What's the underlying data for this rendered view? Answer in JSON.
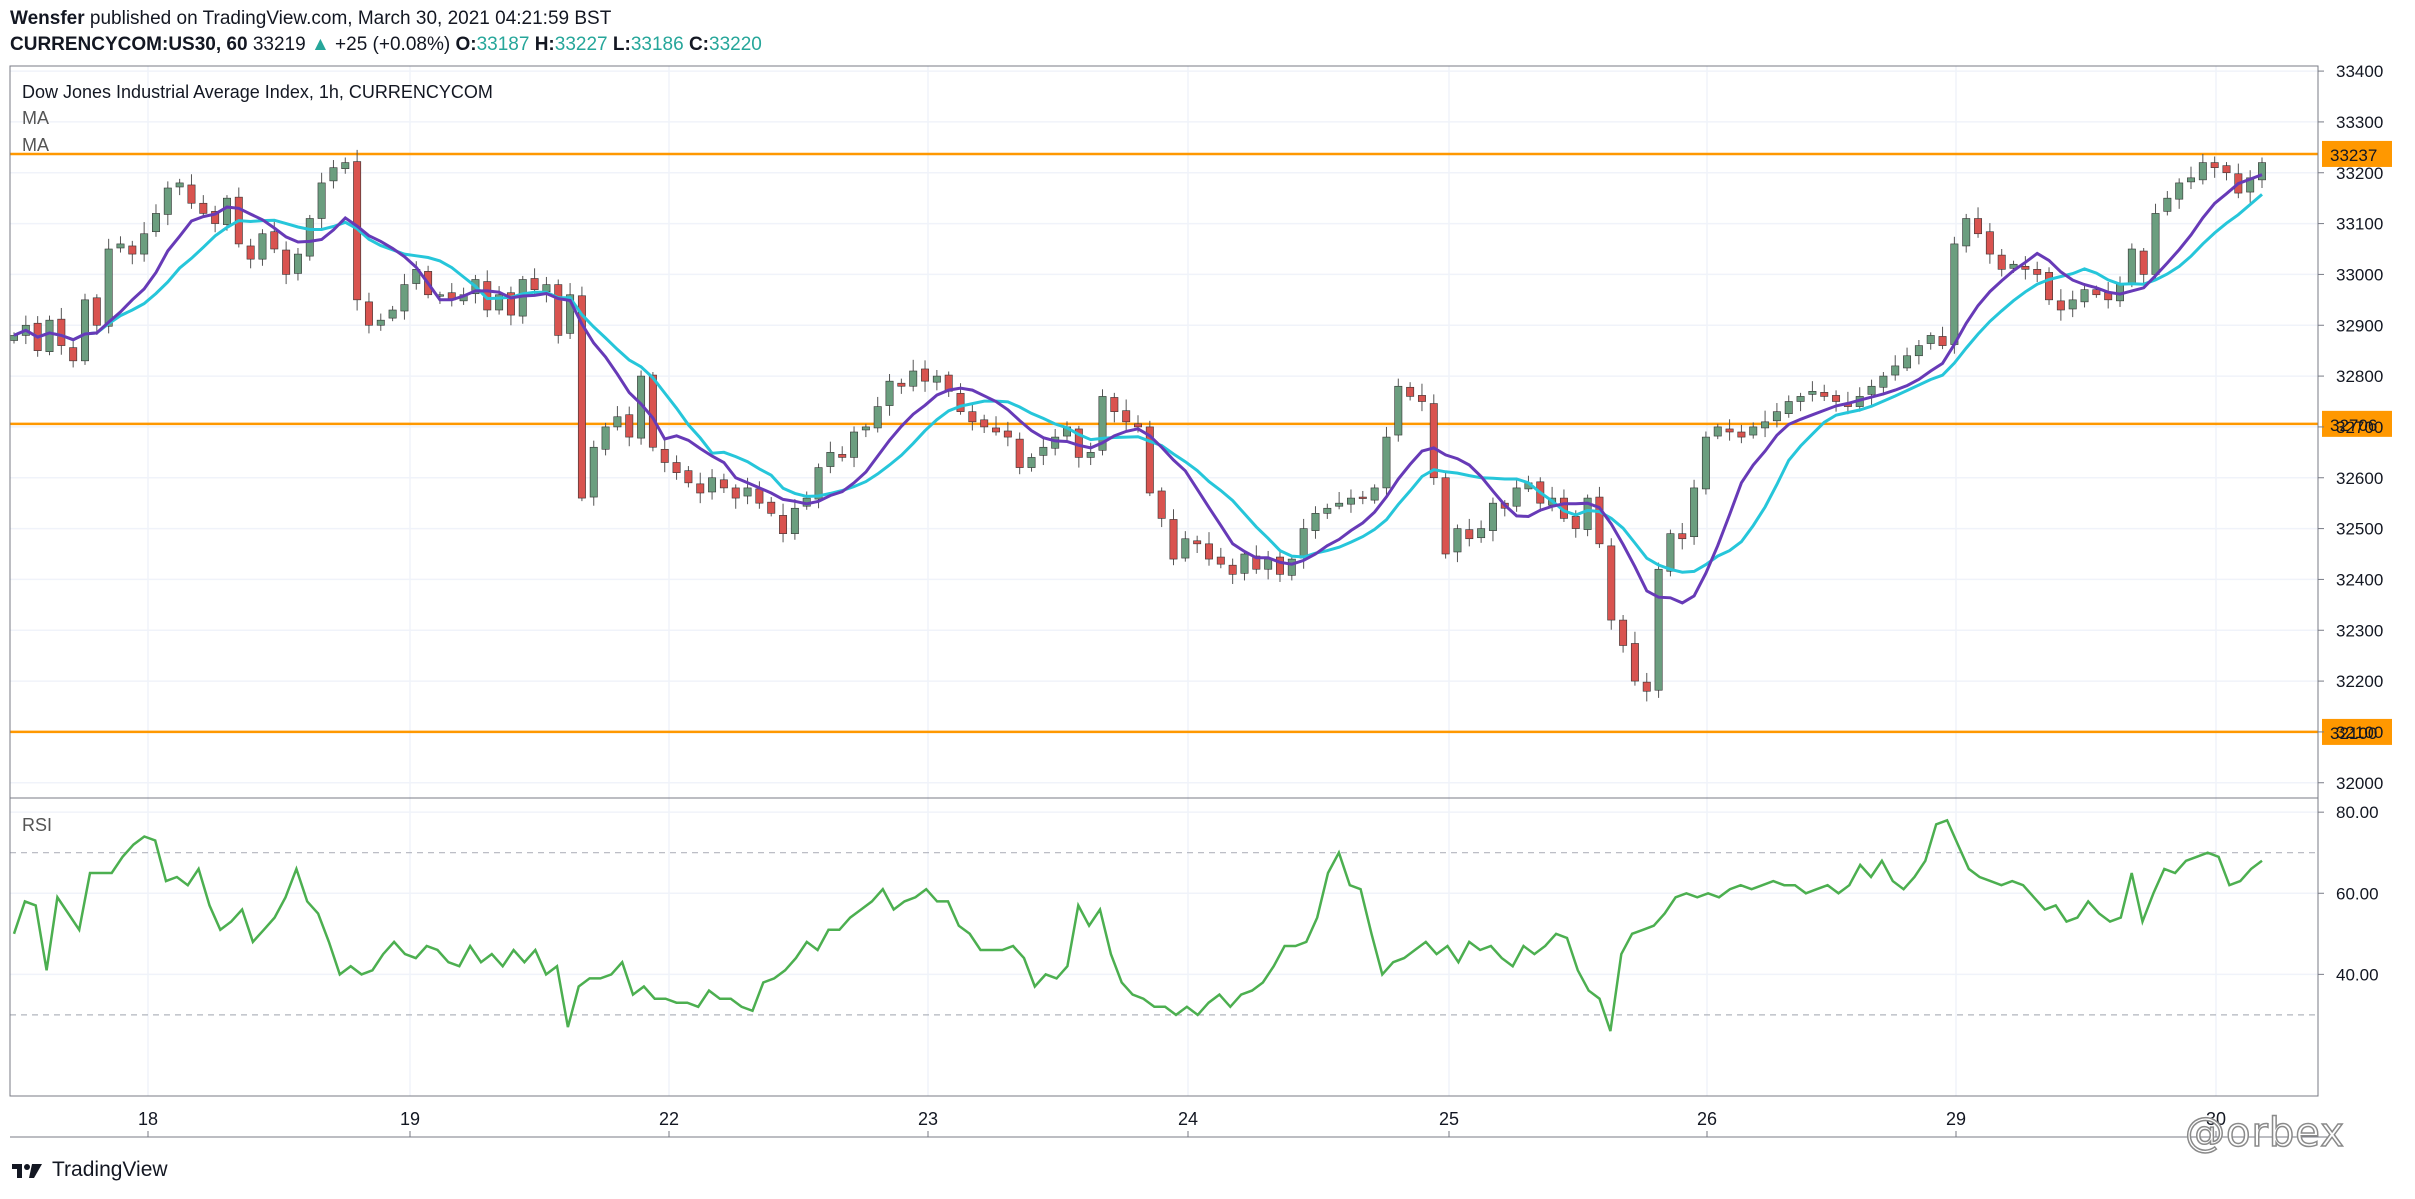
{
  "header": {
    "author": "Wensfer",
    "published_text": "published on TradingView.com, March 30, 2021 04:21:59 BST",
    "symbol": "CURRENCYCOM:US30, 60",
    "last_price": "33219",
    "change_arrow": "▲",
    "change": "+25 (+0.08%)",
    "o_label": "O:",
    "o_value": "33187",
    "h_label": "H:",
    "h_value": "33227",
    "l_label": "L:",
    "l_value": "33186",
    "c_label": "C:",
    "c_value": "33220"
  },
  "legend": {
    "title": "Dow Jones Industrial Average Index, 1h, CURRENCYCOM",
    "ma1": "MA",
    "ma2": "MA",
    "rsi": "RSI"
  },
  "footer": {
    "brand": "TradingView"
  },
  "watermark": "@orbex",
  "colors": {
    "up": "#6b9e7f",
    "down": "#d9534f",
    "ma_fast": "#673ab7",
    "ma_slow": "#26c6da",
    "level": "#ff9800",
    "rsi": "#4caf50",
    "grid": "#f0f3fa",
    "axis_text": "#131722"
  },
  "chart_data": [
    {
      "type": "candlestick",
      "title": "Dow Jones Industrial Average Index, 1h, CURRENCYCOM",
      "x_ticks": [
        "18",
        "19",
        "22",
        "23",
        "24",
        "25",
        "26",
        "29",
        "30"
      ],
      "y_ticks": [
        "33400",
        "33300",
        "33200",
        "33100",
        "33000",
        "32900",
        "32800",
        "32700",
        "32600",
        "32500",
        "32400",
        "32300",
        "32200",
        "32100",
        "32000"
      ],
      "ylim": [
        31970,
        33410
      ],
      "levels": [
        {
          "value": 33237,
          "label": "33237"
        },
        {
          "value": 32706,
          "label": "32706"
        },
        {
          "value": 32100,
          "label": "32100"
        }
      ],
      "close_series": [
        32880,
        32900,
        32850,
        32910,
        32860,
        32830,
        32950,
        32900,
        33050,
        33060,
        33040,
        33080,
        33120,
        33170,
        33180,
        33140,
        33120,
        33100,
        33150,
        33060,
        33030,
        33080,
        33050,
        33000,
        33040,
        33110,
        33180,
        33210,
        33220,
        32950,
        32900,
        32910,
        32930,
        32980,
        33010,
        32960,
        32960,
        32950,
        32960,
        32990,
        32930,
        32960,
        32920,
        32990,
        32970,
        32980,
        32880,
        32960,
        32560,
        32660,
        32700,
        32720,
        32680,
        32800,
        32660,
        32630,
        32610,
        32590,
        32570,
        32600,
        32580,
        32560,
        32580,
        32550,
        32530,
        32490,
        32540,
        32560,
        32620,
        32650,
        32640,
        32690,
        32700,
        32740,
        32790,
        32780,
        32810,
        32790,
        32800,
        32770,
        32730,
        32710,
        32700,
        32690,
        32680,
        32620,
        32640,
        32660,
        32680,
        32700,
        32640,
        32650,
        32760,
        32730,
        32710,
        32700,
        32570,
        32520,
        32440,
        32480,
        32470,
        32440,
        32430,
        32410,
        32450,
        32420,
        32440,
        32410,
        32440,
        32500,
        32530,
        32540,
        32550,
        32560,
        32560,
        32580,
        32680,
        32780,
        32760,
        32750,
        32600,
        32450,
        32500,
        32480,
        32500,
        32550,
        32540,
        32580,
        32590,
        32550,
        32560,
        32520,
        32500,
        32560,
        32470,
        32320,
        32270,
        32200,
        32180,
        32420,
        32490,
        32480,
        32580,
        32680,
        32700,
        32690,
        32680,
        32700,
        32710,
        32730,
        32750,
        32760,
        32770,
        32760,
        32750,
        32740,
        32760,
        32780,
        32800,
        32820,
        32840,
        32860,
        32880,
        32860,
        33060,
        33110,
        33080,
        33040,
        33010,
        33020,
        33010,
        33000,
        32950,
        32930,
        32950,
        32970,
        32960,
        32950,
        32980,
        33050,
        33000,
        33120,
        33150,
        33180,
        33190,
        33220,
        33210,
        33200,
        33160,
        33190,
        33220
      ],
      "ma_fast_label": "MA",
      "ma_slow_label": "MA"
    },
    {
      "type": "line",
      "title": "RSI",
      "y_ticks": [
        "80.00",
        "60.00",
        "40.00"
      ],
      "ylim": [
        10,
        83
      ],
      "bands": [
        70,
        30
      ],
      "values": [
        50,
        58,
        57,
        41,
        59,
        55,
        51,
        65,
        65,
        65,
        69,
        72,
        74,
        73,
        63,
        64,
        62,
        66,
        57,
        51,
        53,
        56,
        48,
        51,
        54,
        59,
        66,
        58,
        55,
        48,
        40,
        42,
        40,
        41,
        45,
        48,
        45,
        44,
        47,
        46,
        43,
        42,
        47,
        43,
        45,
        42,
        46,
        43,
        46,
        40,
        42,
        27,
        37,
        39,
        39,
        40,
        43,
        35,
        37,
        34,
        34,
        33,
        33,
        32,
        36,
        34,
        34,
        32,
        31,
        38,
        39,
        41,
        44,
        48,
        46,
        51,
        51,
        54,
        56,
        58,
        61,
        56,
        58,
        59,
        61,
        58,
        58,
        52,
        50,
        46,
        46,
        46,
        47,
        44,
        37,
        40,
        39,
        42,
        57,
        52,
        56,
        45,
        38,
        35,
        34,
        32,
        32,
        30,
        32,
        30,
        33,
        35,
        32,
        35,
        36,
        38,
        42,
        47,
        47,
        48,
        54,
        65,
        70,
        62,
        61,
        50,
        40,
        43,
        44,
        46,
        48,
        45,
        47,
        43,
        48,
        46,
        47,
        44,
        42,
        47,
        45,
        47,
        50,
        49,
        41,
        36,
        34,
        26,
        45,
        50,
        51,
        52,
        55,
        59,
        60,
        59,
        60,
        59,
        61,
        62,
        61,
        62,
        63,
        62,
        62,
        60,
        61,
        62,
        60,
        62,
        67,
        64,
        68,
        63,
        61,
        64,
        68,
        77,
        78,
        72,
        66,
        64,
        63,
        62,
        63,
        62,
        59,
        56,
        57,
        53,
        54,
        58,
        55,
        53,
        54,
        65,
        53,
        60,
        66,
        65,
        68,
        69,
        70,
        69,
        62,
        63,
        66,
        68
      ]
    }
  ]
}
